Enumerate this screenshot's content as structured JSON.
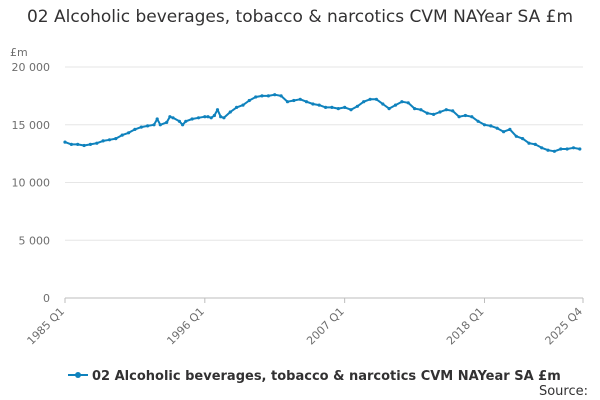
{
  "chart_data": {
    "type": "line",
    "title": "02 Alcoholic beverages, tobacco & narcotics CVM NAYear SA £m",
    "unit_label": "£m",
    "xlabel": "",
    "ylabel": "",
    "ylim": [
      0,
      20000
    ],
    "yticks": [
      {
        "value": 0,
        "label": "0"
      },
      {
        "value": 5000,
        "label": "5 000"
      },
      {
        "value": 10000,
        "label": "10 000"
      },
      {
        "value": 15000,
        "label": "15 000"
      },
      {
        "value": 20000,
        "label": "20 000"
      }
    ],
    "xlim": [
      1985.0,
      2025.75
    ],
    "xticks": [
      {
        "value": 1985.0,
        "label": "1985 Q1"
      },
      {
        "value": 1996.0,
        "label": "1996 Q1"
      },
      {
        "value": 2007.0,
        "label": "2007 Q1"
      },
      {
        "value": 2018.0,
        "label": "2018 Q1"
      },
      {
        "value": 2025.75,
        "label": "2025 Q4"
      }
    ],
    "grid": true,
    "legend_position": "bottom",
    "series": [
      {
        "name": "02 Alcoholic beverages, tobacco & narcotics CVM NAYear SA £m",
        "color": "#0f82bd",
        "points": [
          [
            1985.0,
            13500
          ],
          [
            1985.5,
            13300
          ],
          [
            1986.0,
            13300
          ],
          [
            1986.5,
            13200
          ],
          [
            1987.0,
            13300
          ],
          [
            1987.5,
            13400
          ],
          [
            1988.0,
            13600
          ],
          [
            1988.5,
            13700
          ],
          [
            1989.0,
            13800
          ],
          [
            1989.5,
            14100
          ],
          [
            1990.0,
            14300
          ],
          [
            1990.5,
            14600
          ],
          [
            1991.0,
            14800
          ],
          [
            1991.5,
            14900
          ],
          [
            1992.0,
            15000
          ],
          [
            1992.25,
            15500
          ],
          [
            1992.5,
            15000
          ],
          [
            1993.0,
            15200
          ],
          [
            1993.25,
            15700
          ],
          [
            1993.5,
            15600
          ],
          [
            1994.0,
            15300
          ],
          [
            1994.25,
            15000
          ],
          [
            1994.5,
            15300
          ],
          [
            1995.0,
            15500
          ],
          [
            1995.5,
            15600
          ],
          [
            1996.0,
            15700
          ],
          [
            1996.25,
            15700
          ],
          [
            1996.5,
            15600
          ],
          [
            1996.75,
            15800
          ],
          [
            1997.0,
            16300
          ],
          [
            1997.25,
            15700
          ],
          [
            1997.5,
            15600
          ],
          [
            1998.0,
            16100
          ],
          [
            1998.5,
            16500
          ],
          [
            1999.0,
            16700
          ],
          [
            1999.5,
            17100
          ],
          [
            2000.0,
            17400
          ],
          [
            2000.5,
            17500
          ],
          [
            2001.0,
            17500
          ],
          [
            2001.5,
            17600
          ],
          [
            2002.0,
            17500
          ],
          [
            2002.5,
            17000
          ],
          [
            2003.0,
            17100
          ],
          [
            2003.5,
            17200
          ],
          [
            2004.0,
            17000
          ],
          [
            2004.5,
            16800
          ],
          [
            2005.0,
            16700
          ],
          [
            2005.5,
            16500
          ],
          [
            2006.0,
            16500
          ],
          [
            2006.5,
            16400
          ],
          [
            2007.0,
            16500
          ],
          [
            2007.5,
            16300
          ],
          [
            2008.0,
            16600
          ],
          [
            2008.5,
            17000
          ],
          [
            2009.0,
            17200
          ],
          [
            2009.5,
            17200
          ],
          [
            2010.0,
            16800
          ],
          [
            2010.5,
            16400
          ],
          [
            2011.0,
            16700
          ],
          [
            2011.5,
            17000
          ],
          [
            2012.0,
            16900
          ],
          [
            2012.5,
            16400
          ],
          [
            2013.0,
            16300
          ],
          [
            2013.5,
            16000
          ],
          [
            2014.0,
            15900
          ],
          [
            2014.5,
            16100
          ],
          [
            2015.0,
            16300
          ],
          [
            2015.5,
            16200
          ],
          [
            2016.0,
            15700
          ],
          [
            2016.5,
            15800
          ],
          [
            2017.0,
            15700
          ],
          [
            2017.5,
            15300
          ],
          [
            2018.0,
            15000
          ],
          [
            2018.5,
            14900
          ],
          [
            2019.0,
            14700
          ],
          [
            2019.5,
            14400
          ],
          [
            2020.0,
            14600
          ],
          [
            2020.5,
            14000
          ],
          [
            2021.0,
            13800
          ],
          [
            2021.5,
            13400
          ],
          [
            2022.0,
            13300
          ],
          [
            2022.5,
            13000
          ],
          [
            2023.0,
            12800
          ],
          [
            2023.5,
            12700
          ],
          [
            2024.0,
            12900
          ],
          [
            2024.5,
            12900
          ],
          [
            2025.0,
            13000
          ],
          [
            2025.5,
            12900
          ]
        ]
      }
    ]
  },
  "legend": {
    "label": "02 Alcoholic beverages, tobacco & narcotics CVM NAYear SA £m"
  },
  "source_label": "Source:"
}
